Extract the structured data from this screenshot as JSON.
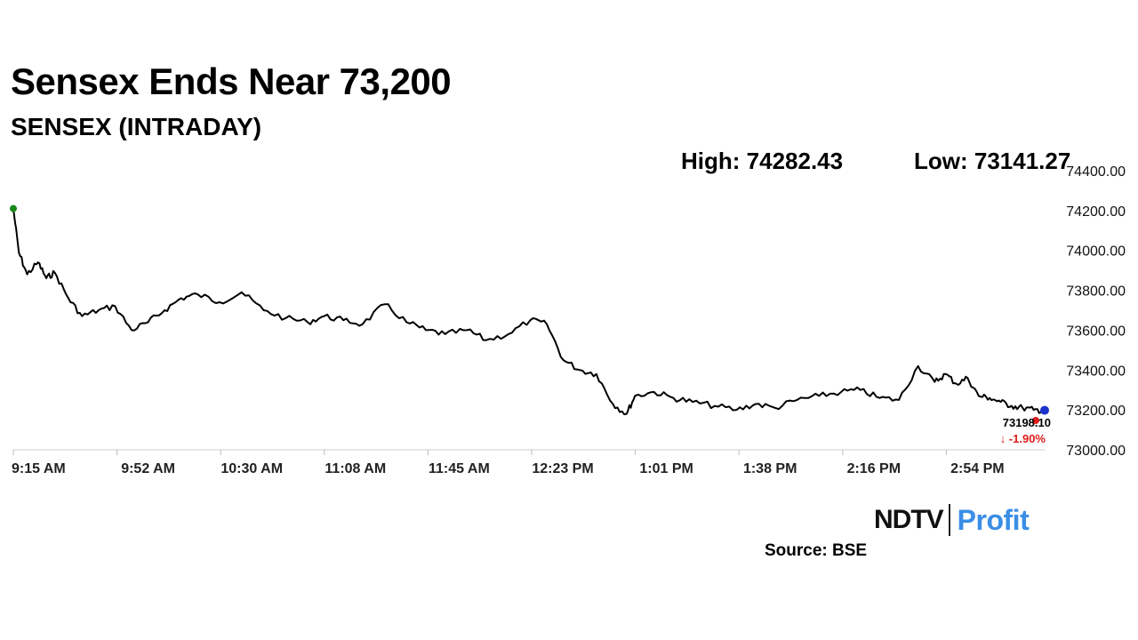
{
  "header": {
    "title": "Sensex Ends Near 73,200",
    "subtitle": "SENSEX (INTRADAY)",
    "high": "High: 74282.43",
    "low": "Low: 73141.27"
  },
  "footer": {
    "logo_ndtv": "NDTV",
    "logo_profit": "Profit",
    "source": "Source: BSE"
  },
  "colors": {
    "line": "#000000",
    "start_marker": "#1a8a1a",
    "end_marker": "#e01b1b",
    "current_marker": "#1a33cc",
    "change_negative": "#e01b1b",
    "brand_profit": "#3a8ee6"
  },
  "chart_data": {
    "type": "line",
    "title": "Sensex Ends Near 73,200",
    "subtitle": "SENSEX (INTRADAY)",
    "xlabel": "",
    "ylabel": "",
    "y_axis_position": "right",
    "ylim": [
      73000,
      74400
    ],
    "yticks": [
      "74400.00",
      "74200.00",
      "74000.00",
      "73800.00",
      "73600.00",
      "73400.00",
      "73200.00",
      "73000.00"
    ],
    "xticks": [
      "9:15 AM",
      "9:52 AM",
      "10:30 AM",
      "11:08 AM",
      "11:45 AM",
      "12:23 PM",
      "1:01 PM",
      "1:38 PM",
      "2:16 PM",
      "2:54 PM"
    ],
    "last_value": "73198.10",
    "change": "↓ -1.90%",
    "series": [
      {
        "x": [
          "9:15",
          "9:17",
          "9:20",
          "9:24",
          "9:27",
          "9:30",
          "9:35",
          "9:40",
          "9:46",
          "9:52",
          "9:58",
          "10:04",
          "10:10",
          "10:16",
          "10:22",
          "10:30",
          "10:38",
          "10:46",
          "10:54",
          "11:02",
          "11:08",
          "11:15",
          "11:22",
          "11:30",
          "11:38",
          "11:45",
          "11:52",
          "12:00",
          "12:07",
          "12:15",
          "12:23",
          "12:29",
          "12:35",
          "12:41",
          "12:47",
          "12:53",
          "12:58",
          "13:01",
          "13:08",
          "13:15",
          "13:22",
          "13:30",
          "13:38",
          "13:45",
          "13:52",
          "14:00",
          "14:08",
          "14:16",
          "14:23",
          "14:30",
          "14:37",
          "14:44",
          "14:50",
          "14:54",
          "14:58",
          "15:02",
          "15:06",
          "15:10",
          "15:14",
          "15:18",
          "15:22",
          "15:26",
          "15:30"
        ],
        "values": [
          74210,
          73990,
          73880,
          73940,
          73860,
          73890,
          73760,
          73670,
          73700,
          73720,
          73600,
          73640,
          73700,
          73760,
          73780,
          73740,
          73790,
          73700,
          73660,
          73640,
          73670,
          73650,
          73630,
          73730,
          73640,
          73600,
          73580,
          73600,
          73550,
          73580,
          73650,
          73630,
          73450,
          73400,
          73380,
          73230,
          73180,
          73270,
          73290,
          73260,
          73240,
          73220,
          73200,
          73230,
          73210,
          73250,
          73270,
          73290,
          73300,
          73260,
          73250,
          73420,
          73340,
          73380,
          73330,
          73360,
          73270,
          73260,
          73240,
          73220,
          73210,
          73200,
          73198.1
        ]
      }
    ]
  }
}
